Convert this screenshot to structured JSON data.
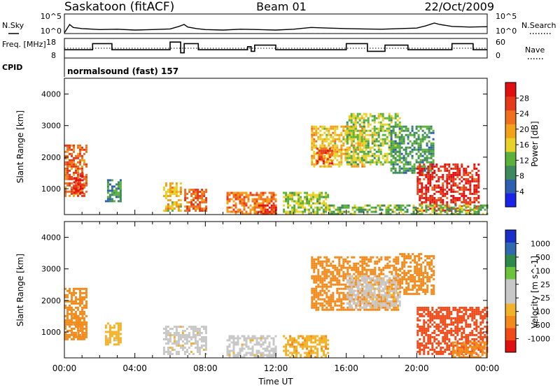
{
  "header": {
    "station": "Saskatoon (fitACF)",
    "beam": "Beam 01",
    "date": "22/Oct/2009",
    "cpid_label": "CPID",
    "cpid_value": "normalsound (fast) 157"
  },
  "colors": {
    "power_scale": [
      "#1a24e8",
      "#2f5fb0",
      "#3e8a5e",
      "#5cb13a",
      "#e8d22a",
      "#f2a21a",
      "#f07020",
      "#e43a1a",
      "#e01010"
    ],
    "velocity_scale": [
      "#e01010",
      "#f04a18",
      "#f28a1c",
      "#f2b22a",
      "#c8c8c8",
      "#c8c8c8",
      "#6cc43c",
      "#2e8a4a",
      "#2f6ab0",
      "#1a2fc8"
    ],
    "grey": "#c8c8c8"
  },
  "chart_data": [
    {
      "type": "line",
      "name": "noise-panel",
      "left_label": "N.Sky",
      "right_label": "N.Search",
      "left_ticks": [
        "10^5",
        "10^0"
      ],
      "right_ticks": [
        "10^5",
        "10^0"
      ],
      "series": [
        {
          "name": "N.Sky",
          "style": "solid",
          "x": [
            0,
            0.3,
            0.5,
            1.0,
            2.0,
            3.0,
            4.0,
            5.0,
            6.0,
            6.5,
            6.8,
            7.0,
            7.5,
            8.0,
            9.0,
            10.0,
            11.0,
            12.0,
            13.0,
            14.0,
            15.0,
            16.0,
            17.0,
            18.0,
            19.0,
            20.0,
            20.5,
            21.0,
            21.3,
            22.0,
            23.0,
            24.0
          ],
          "y": [
            1,
            200,
            30,
            15,
            8,
            10,
            6,
            8,
            12,
            60,
            200,
            40,
            15,
            8,
            6,
            10,
            8,
            6,
            10,
            30,
            20,
            15,
            12,
            10,
            15,
            20,
            80,
            500,
            200,
            60,
            40,
            50
          ]
        }
      ]
    },
    {
      "type": "line",
      "name": "frequency-panel",
      "left_label": "Freq. [MHz]",
      "right_label": "Nave",
      "left_ticks": [
        18,
        8
      ],
      "right_ticks": [
        60,
        0
      ],
      "series": [
        {
          "name": "Freq.",
          "style": "solid",
          "x": [
            0.0,
            0.5,
            1.0,
            1.6,
            2.2,
            2.7,
            3.3,
            3.9,
            4.5,
            5.0,
            5.6,
            6.0,
            6.5,
            6.6,
            6.8,
            7.2,
            7.6,
            8.0,
            8.6,
            9.2,
            9.8,
            10.0,
            10.4,
            10.6,
            10.8,
            11.5,
            12.0,
            12.6,
            13.0,
            13.6,
            14.2,
            14.8,
            15.4,
            15.8,
            16.0,
            16.6,
            17.2,
            17.6,
            18.2,
            18.8,
            19.5,
            20.0,
            20.6,
            21.0,
            21.6,
            22.0,
            22.6,
            23.2,
            23.7,
            24.0
          ],
          "y": [
            12,
            12,
            12,
            16,
            16,
            12,
            12,
            12,
            12,
            12,
            12,
            17,
            17,
            10,
            16,
            16,
            12,
            12,
            12,
            12,
            12,
            12,
            14,
            11,
            15,
            15,
            12,
            12,
            12,
            12,
            12,
            12,
            12,
            12,
            16,
            16,
            11,
            11,
            15,
            15,
            12,
            12,
            12,
            12,
            12,
            16,
            16,
            12,
            12,
            12
          ]
        },
        {
          "name": "Nave",
          "style": "dotted",
          "x": [
            0,
            24
          ],
          "y": [
            30,
            30
          ]
        }
      ]
    },
    {
      "type": "heatmap",
      "name": "power-panel",
      "ylabel": "Slant Range [km]",
      "yticks": [
        1000,
        2000,
        3000,
        4000
      ],
      "ylim": [
        180,
        4500
      ],
      "xlim": [
        0,
        24
      ],
      "colorbar": {
        "label": "Power [dB]",
        "ticks": [
          4,
          8,
          12,
          16,
          20,
          24,
          28
        ],
        "range": [
          0,
          32
        ]
      },
      "blobs": [
        {
          "t0": 0.0,
          "t1": 1.2,
          "r0": 800,
          "r1": 2400,
          "value": 24
        },
        {
          "t0": 0.5,
          "t1": 1.0,
          "r0": 900,
          "r1": 1500,
          "value": 30
        },
        {
          "t0": 2.3,
          "t1": 3.2,
          "r0": 600,
          "r1": 1300,
          "value": 10
        },
        {
          "t0": 5.6,
          "t1": 6.6,
          "r0": 300,
          "r1": 1200,
          "value": 18
        },
        {
          "t0": 6.8,
          "t1": 8.0,
          "r0": 300,
          "r1": 1000,
          "value": 24
        },
        {
          "t0": 9.2,
          "t1": 12.0,
          "r0": 200,
          "r1": 900,
          "value": 22
        },
        {
          "t0": 11.0,
          "t1": 12.0,
          "r0": 200,
          "r1": 500,
          "value": 28
        },
        {
          "t0": 12.4,
          "t1": 15.0,
          "r0": 200,
          "r1": 900,
          "value": 14
        },
        {
          "t0": 14.0,
          "t1": 17.0,
          "r0": 1700,
          "r1": 3000,
          "value": 18
        },
        {
          "t0": 14.3,
          "t1": 15.2,
          "r0": 1800,
          "r1": 2300,
          "value": 26
        },
        {
          "t0": 16.0,
          "t1": 19.0,
          "r0": 1800,
          "r1": 3400,
          "value": 14
        },
        {
          "t0": 18.5,
          "t1": 21.0,
          "r0": 1500,
          "r1": 3000,
          "value": 10
        },
        {
          "t0": 20.0,
          "t1": 23.5,
          "r0": 300,
          "r1": 1800,
          "value": 28
        },
        {
          "t0": 15.0,
          "t1": 24.0,
          "r0": 180,
          "r1": 500,
          "value": 12
        }
      ]
    },
    {
      "type": "heatmap",
      "name": "velocity-panel",
      "ylabel": "Slant Range [km]",
      "xlabel": "Time UT",
      "yticks": [
        1000,
        2000,
        3000,
        4000
      ],
      "ylim": [
        180,
        4500
      ],
      "xlim": [
        0,
        24
      ],
      "xticks": [
        "00:00",
        "04:00",
        "08:00",
        "12:00",
        "16:00",
        "20:00",
        "00:00"
      ],
      "colorbar": {
        "label": "Velocity [m s^-1]",
        "ticks": [
          1000,
          500,
          100,
          25,
          -25,
          -100,
          -500,
          -1000
        ]
      },
      "blobs": [
        {
          "t0": 0.0,
          "t1": 1.2,
          "r0": 800,
          "r1": 2400,
          "value": -200
        },
        {
          "t0": 0.5,
          "t1": 1.0,
          "r0": 900,
          "r1": 1600,
          "value": -400
        },
        {
          "t0": 2.3,
          "t1": 3.2,
          "r0": 600,
          "r1": 1300,
          "value": -50
        },
        {
          "t0": 5.6,
          "t1": 8.0,
          "r0": 300,
          "r1": 1200,
          "value": 0
        },
        {
          "t0": 9.2,
          "t1": 12.0,
          "r0": 200,
          "r1": 900,
          "value": 0
        },
        {
          "t0": 12.4,
          "t1": 15.0,
          "r0": 200,
          "r1": 900,
          "value": -80
        },
        {
          "t0": 14.0,
          "t1": 19.0,
          "r0": 1700,
          "r1": 3400,
          "value": -150
        },
        {
          "t0": 16.0,
          "t1": 19.0,
          "r0": 1800,
          "r1": 2800,
          "value": 0
        },
        {
          "t0": 19.0,
          "t1": 21.0,
          "r0": 2200,
          "r1": 3500,
          "value": -300
        },
        {
          "t0": 20.0,
          "t1": 24.0,
          "r0": 300,
          "r1": 1800,
          "value": -600
        },
        {
          "t0": 22.0,
          "t1": 24.0,
          "r0": 180,
          "r1": 700,
          "value": -150
        }
      ]
    }
  ]
}
